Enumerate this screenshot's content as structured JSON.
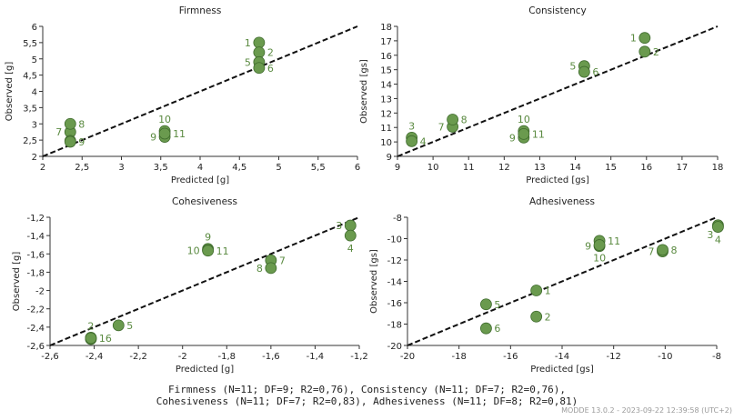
{
  "colors": {
    "point_fill": "#6a9a4e",
    "point_stroke": "#3e6a2c",
    "point_label": "#5a8a40",
    "diagonal": "#111111",
    "axis": "#333333",
    "text": "#222222"
  },
  "caption": {
    "line1": "Firmness (N=11; DF=9; R2=0,76), Consistency (N=11; DF=7; R2=0,76),",
    "line2": "Cohesiveness (N=11; DF=7; R2=0,83), Adhesiveness (N=11; DF=8; R2=0,81)"
  },
  "stamp": "MODDE 13.0.2 - 2023-09-22 12:39:58 (UTC+2)",
  "chart_data": [
    {
      "type": "scatter",
      "title": "Firmness",
      "xlabel": "Predicted [g]",
      "ylabel": "Observed [g]",
      "xlim": [
        2,
        6
      ],
      "ylim": [
        2,
        6
      ],
      "xticks": [
        2,
        2.5,
        3,
        3.5,
        4,
        4.5,
        5,
        5.5,
        6
      ],
      "yticks": [
        2,
        2.5,
        3,
        3.5,
        4,
        4.5,
        5,
        5.5,
        6
      ],
      "tick_labels_x": [
        "2",
        "2,5",
        "3",
        "3,5",
        "4",
        "4,5",
        "5",
        "5,5",
        "6"
      ],
      "tick_labels_y": [
        "2",
        "2,5",
        "3",
        "3,5",
        "4",
        "4,5",
        "5",
        "5,5",
        "6"
      ],
      "diagonal": true,
      "points": [
        {
          "label": "1",
          "x": 4.75,
          "y": 5.5,
          "side": "left"
        },
        {
          "label": "2",
          "x": 4.75,
          "y": 5.2,
          "side": "right"
        },
        {
          "label": "5",
          "x": 4.75,
          "y": 4.9,
          "side": "left"
        },
        {
          "label": "6",
          "x": 4.75,
          "y": 4.72,
          "side": "right"
        },
        {
          "label": "7",
          "x": 2.35,
          "y": 2.75,
          "side": "left"
        },
        {
          "label": "8",
          "x": 2.35,
          "y": 3.0,
          "side": "right"
        },
        {
          "label": "",
          "x": 2.35,
          "y": 2.48,
          "side": "none"
        },
        {
          "label": "9",
          "x": 3.55,
          "y": 2.6,
          "side": "left"
        },
        {
          "label": "10",
          "x": 3.55,
          "y": 2.78,
          "side": "above"
        },
        {
          "label": "11",
          "x": 3.55,
          "y": 2.7,
          "side": "right"
        },
        {
          "label": "9",
          "x": 2.35,
          "y": 2.45,
          "side": "right"
        }
      ]
    },
    {
      "type": "scatter",
      "title": "Consistency",
      "xlabel": "Predicted [gs]",
      "ylabel": "Observed [gs]",
      "xlim": [
        9,
        18
      ],
      "ylim": [
        9,
        18
      ],
      "xticks": [
        9,
        10,
        11,
        12,
        13,
        14,
        15,
        16,
        17,
        18
      ],
      "yticks": [
        9,
        10,
        11,
        12,
        13,
        14,
        15,
        16,
        17,
        18
      ],
      "tick_labels_x": [
        "9",
        "10",
        "11",
        "12",
        "13",
        "14",
        "15",
        "16",
        "17",
        "18"
      ],
      "tick_labels_y": [
        "9",
        "10",
        "11",
        "12",
        "13",
        "14",
        "15",
        "16",
        "17",
        "18"
      ],
      "diagonal": true,
      "points": [
        {
          "label": "1",
          "x": 15.95,
          "y": 17.2,
          "side": "left"
        },
        {
          "label": "2",
          "x": 15.95,
          "y": 16.25,
          "side": "right"
        },
        {
          "label": "5",
          "x": 14.25,
          "y": 15.25,
          "side": "left"
        },
        {
          "label": "6",
          "x": 14.25,
          "y": 14.85,
          "side": "right"
        },
        {
          "label": "3",
          "x": 9.4,
          "y": 10.3,
          "side": "above"
        },
        {
          "label": "4",
          "x": 9.4,
          "y": 10.05,
          "side": "right"
        },
        {
          "label": "7",
          "x": 10.55,
          "y": 11.05,
          "side": "left"
        },
        {
          "label": "8",
          "x": 10.55,
          "y": 11.55,
          "side": "right"
        },
        {
          "label": "10",
          "x": 12.55,
          "y": 10.75,
          "side": "above"
        },
        {
          "label": "9",
          "x": 12.55,
          "y": 10.3,
          "side": "left"
        },
        {
          "label": "11",
          "x": 12.55,
          "y": 10.55,
          "side": "right"
        }
      ]
    },
    {
      "type": "scatter",
      "title": "Cohesiveness",
      "xlabel": "Predicted [g]",
      "ylabel": "Observed [g]",
      "xlim": [
        -2.6,
        -1.2
      ],
      "ylim": [
        -2.6,
        -1.2
      ],
      "xticks": [
        -2.6,
        -2.4,
        -2.2,
        -2,
        -1.8,
        -1.6,
        -1.4,
        -1.2
      ],
      "yticks": [
        -2.6,
        -2.4,
        -2.2,
        -2,
        -1.8,
        -1.6,
        -1.4,
        -1.2
      ],
      "tick_labels_x": [
        "-2,6",
        "-2,4",
        "-2,2",
        "-2",
        "-1,8",
        "-1,6",
        "-1,4",
        "-1,2"
      ],
      "tick_labels_y": [
        "-2,6",
        "-2,4",
        "-2,2",
        "-2",
        "-1,8",
        "-1,6",
        "-1,4",
        "-1,2"
      ],
      "diagonal": true,
      "points": [
        {
          "label": "3",
          "x": -1.24,
          "y": -1.29,
          "side": "left"
        },
        {
          "label": "4",
          "x": -1.24,
          "y": -1.4,
          "side": "below"
        },
        {
          "label": "9",
          "x": -1.885,
          "y": -1.545,
          "side": "above"
        },
        {
          "label": "10",
          "x": -1.885,
          "y": -1.56,
          "side": "left"
        },
        {
          "label": "11",
          "x": -1.885,
          "y": -1.565,
          "side": "right"
        },
        {
          "label": "7",
          "x": -1.6,
          "y": -1.67,
          "side": "right"
        },
        {
          "label": "8",
          "x": -1.6,
          "y": -1.755,
          "side": "left"
        },
        {
          "label": "2",
          "x": -2.415,
          "y": -2.515,
          "side": "above"
        },
        {
          "label": "1",
          "x": -2.415,
          "y": -2.53,
          "side": "none"
        },
        {
          "label": "16",
          "x": -2.415,
          "y": -2.52,
          "side": "right"
        },
        {
          "label": "5",
          "x": -2.29,
          "y": -2.38,
          "side": "right"
        }
      ]
    },
    {
      "type": "scatter",
      "title": "Adhesiveness",
      "xlabel": "Predicted [gs]",
      "ylabel": "Observed [gs]",
      "xlim": [
        -20,
        -8
      ],
      "ylim": [
        -20,
        -8
      ],
      "xticks": [
        -20,
        -18,
        -16,
        -14,
        -12,
        -10,
        -8
      ],
      "yticks": [
        -20,
        -18,
        -16,
        -14,
        -12,
        -10,
        -8
      ],
      "tick_labels_x": [
        "-20",
        "-18",
        "-16",
        "-14",
        "-12",
        "-10",
        "-8"
      ],
      "tick_labels_y": [
        "-20",
        "-18",
        "-16",
        "-14",
        "-12",
        "-10",
        "-8"
      ],
      "diagonal": true,
      "points": [
        {
          "label": "3",
          "x": -7.95,
          "y": -8.75,
          "side": "belowleft"
        },
        {
          "label": "4",
          "x": -7.95,
          "y": -8.9,
          "side": "below"
        },
        {
          "label": "9",
          "x": -12.55,
          "y": -10.7,
          "side": "left"
        },
        {
          "label": "11",
          "x": -12.55,
          "y": -10.2,
          "side": "right"
        },
        {
          "label": "10",
          "x": -12.55,
          "y": -10.6,
          "side": "below"
        },
        {
          "label": "7",
          "x": -10.1,
          "y": -11.2,
          "side": "left"
        },
        {
          "label": "8",
          "x": -10.1,
          "y": -11.05,
          "side": "right"
        },
        {
          "label": "1",
          "x": -15.0,
          "y": -14.85,
          "side": "right"
        },
        {
          "label": "2",
          "x": -15.0,
          "y": -17.3,
          "side": "right"
        },
        {
          "label": "5",
          "x": -16.95,
          "y": -16.15,
          "side": "right"
        },
        {
          "label": "6",
          "x": -16.95,
          "y": -18.4,
          "side": "right"
        }
      ]
    }
  ]
}
